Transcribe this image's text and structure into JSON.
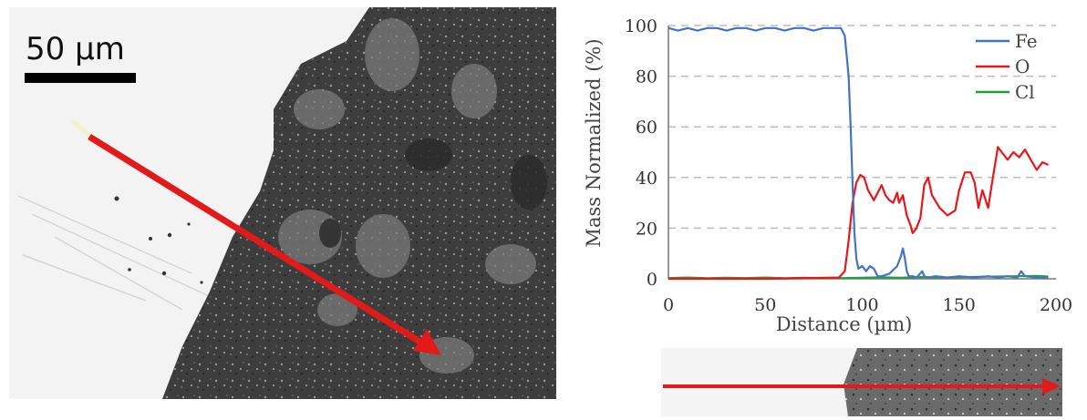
{
  "scale_bar": {
    "label": "50 µm"
  },
  "colors": {
    "Fe": "#4472C4",
    "O": "#E8161B",
    "Cl": "#1FA040",
    "arrow": "#E31A1A"
  },
  "chart_data": {
    "type": "line",
    "xlabel": "Distance (µm)",
    "ylabel": "Mass Normalized (%)",
    "xlim": [
      0,
      200
    ],
    "ylim": [
      0,
      100
    ],
    "xticks": [
      "0",
      "50",
      "100",
      "150",
      "200"
    ],
    "yticks": [
      "0",
      "20",
      "40",
      "60",
      "80",
      "100"
    ],
    "grid": "horizontal dashed",
    "legend_position": "top-right",
    "series": [
      {
        "name": "Fe",
        "color": "#4472C4",
        "x": [
          0,
          5,
          10,
          15,
          20,
          25,
          30,
          35,
          40,
          45,
          50,
          55,
          60,
          65,
          70,
          75,
          80,
          85,
          89,
          91,
          93,
          94,
          95,
          96,
          97,
          98,
          100,
          102,
          104,
          106,
          108,
          110,
          114,
          118,
          120,
          121,
          122,
          123,
          124,
          126,
          128,
          131,
          132,
          134,
          138,
          144,
          150,
          158,
          165,
          170,
          175,
          180,
          182,
          184,
          190,
          196
        ],
        "values": [
          99,
          98,
          99,
          98,
          99,
          99,
          98,
          99,
          99,
          98,
          99,
          99,
          98,
          99,
          99,
          98,
          99,
          99,
          99,
          96,
          80,
          60,
          38,
          18,
          8,
          4,
          5,
          3,
          5,
          4,
          1,
          1,
          2,
          5,
          9,
          12,
          8,
          3,
          1,
          1,
          0.5,
          3,
          1,
          0.5,
          1,
          0.5,
          1,
          0.5,
          1,
          0.5,
          1,
          0.5,
          3,
          1,
          0.5,
          0.5
        ]
      },
      {
        "name": "O",
        "color": "#E8161B",
        "x": [
          0,
          50,
          88,
          91,
          93,
          95,
          97,
          99,
          101,
          103,
          106,
          108,
          110,
          112,
          114,
          116,
          118,
          119,
          121,
          123,
          125,
          126,
          128,
          130,
          132,
          134,
          136,
          140,
          144,
          148,
          150,
          153,
          156,
          158,
          160,
          162,
          165,
          167,
          170,
          172,
          175,
          178,
          181,
          184,
          187,
          190,
          193,
          196
        ],
        "values": [
          0,
          0,
          0.5,
          3,
          15,
          30,
          38,
          41,
          40,
          35,
          31,
          34,
          37,
          33,
          31,
          30,
          34,
          30,
          33,
          25,
          21,
          18,
          20,
          24,
          37,
          40,
          33,
          28,
          25,
          27,
          35,
          42,
          42,
          38,
          28,
          35,
          28,
          38,
          52,
          50,
          47,
          50,
          48,
          51,
          47,
          43,
          46,
          45
        ]
      },
      {
        "name": "Cl",
        "color": "#1FA040",
        "x": [
          0,
          10,
          20,
          30,
          40,
          50,
          60,
          70,
          80,
          90,
          100,
          110,
          120,
          130,
          140,
          150,
          160,
          170,
          180,
          190,
          196
        ],
        "values": [
          0.3,
          0.5,
          0.2,
          0.4,
          0.3,
          0.5,
          0.2,
          0.4,
          0.3,
          0.3,
          0.4,
          0.6,
          0.4,
          0.7,
          0.5,
          0.6,
          0.8,
          0.9,
          1.0,
          1.1,
          0.9
        ]
      }
    ]
  }
}
